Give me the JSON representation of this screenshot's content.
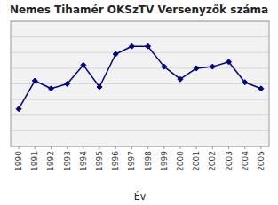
{
  "chart_data": {
    "type": "line",
    "title": "Nemes Tihamér OKSzTV Versenyzők száma",
    "x_label": "Év",
    "x": [
      1990,
      1991,
      1992,
      1993,
      1994,
      1995,
      1996,
      1997,
      1998,
      1999,
      2000,
      2001,
      2002,
      2003,
      2004,
      2005
    ],
    "values": [
      120,
      210,
      185,
      200,
      260,
      190,
      295,
      320,
      320,
      255,
      215,
      250,
      255,
      270,
      205,
      185
    ],
    "color": "#00008B",
    "marker": "diamond",
    "xlim": [
      1989.5,
      2005.5
    ],
    "xticks": [
      1990,
      1991,
      1992,
      1993,
      1994,
      1995,
      1996,
      1997,
      1998,
      1999,
      2000,
      2001,
      2002,
      2003,
      2004,
      2005
    ],
    "ylim": [
      0,
      400
    ],
    "yticks": [
      0,
      50,
      100,
      150,
      200,
      250,
      300,
      350,
      400
    ],
    "grid": true,
    "tick_labels": "x"
  }
}
